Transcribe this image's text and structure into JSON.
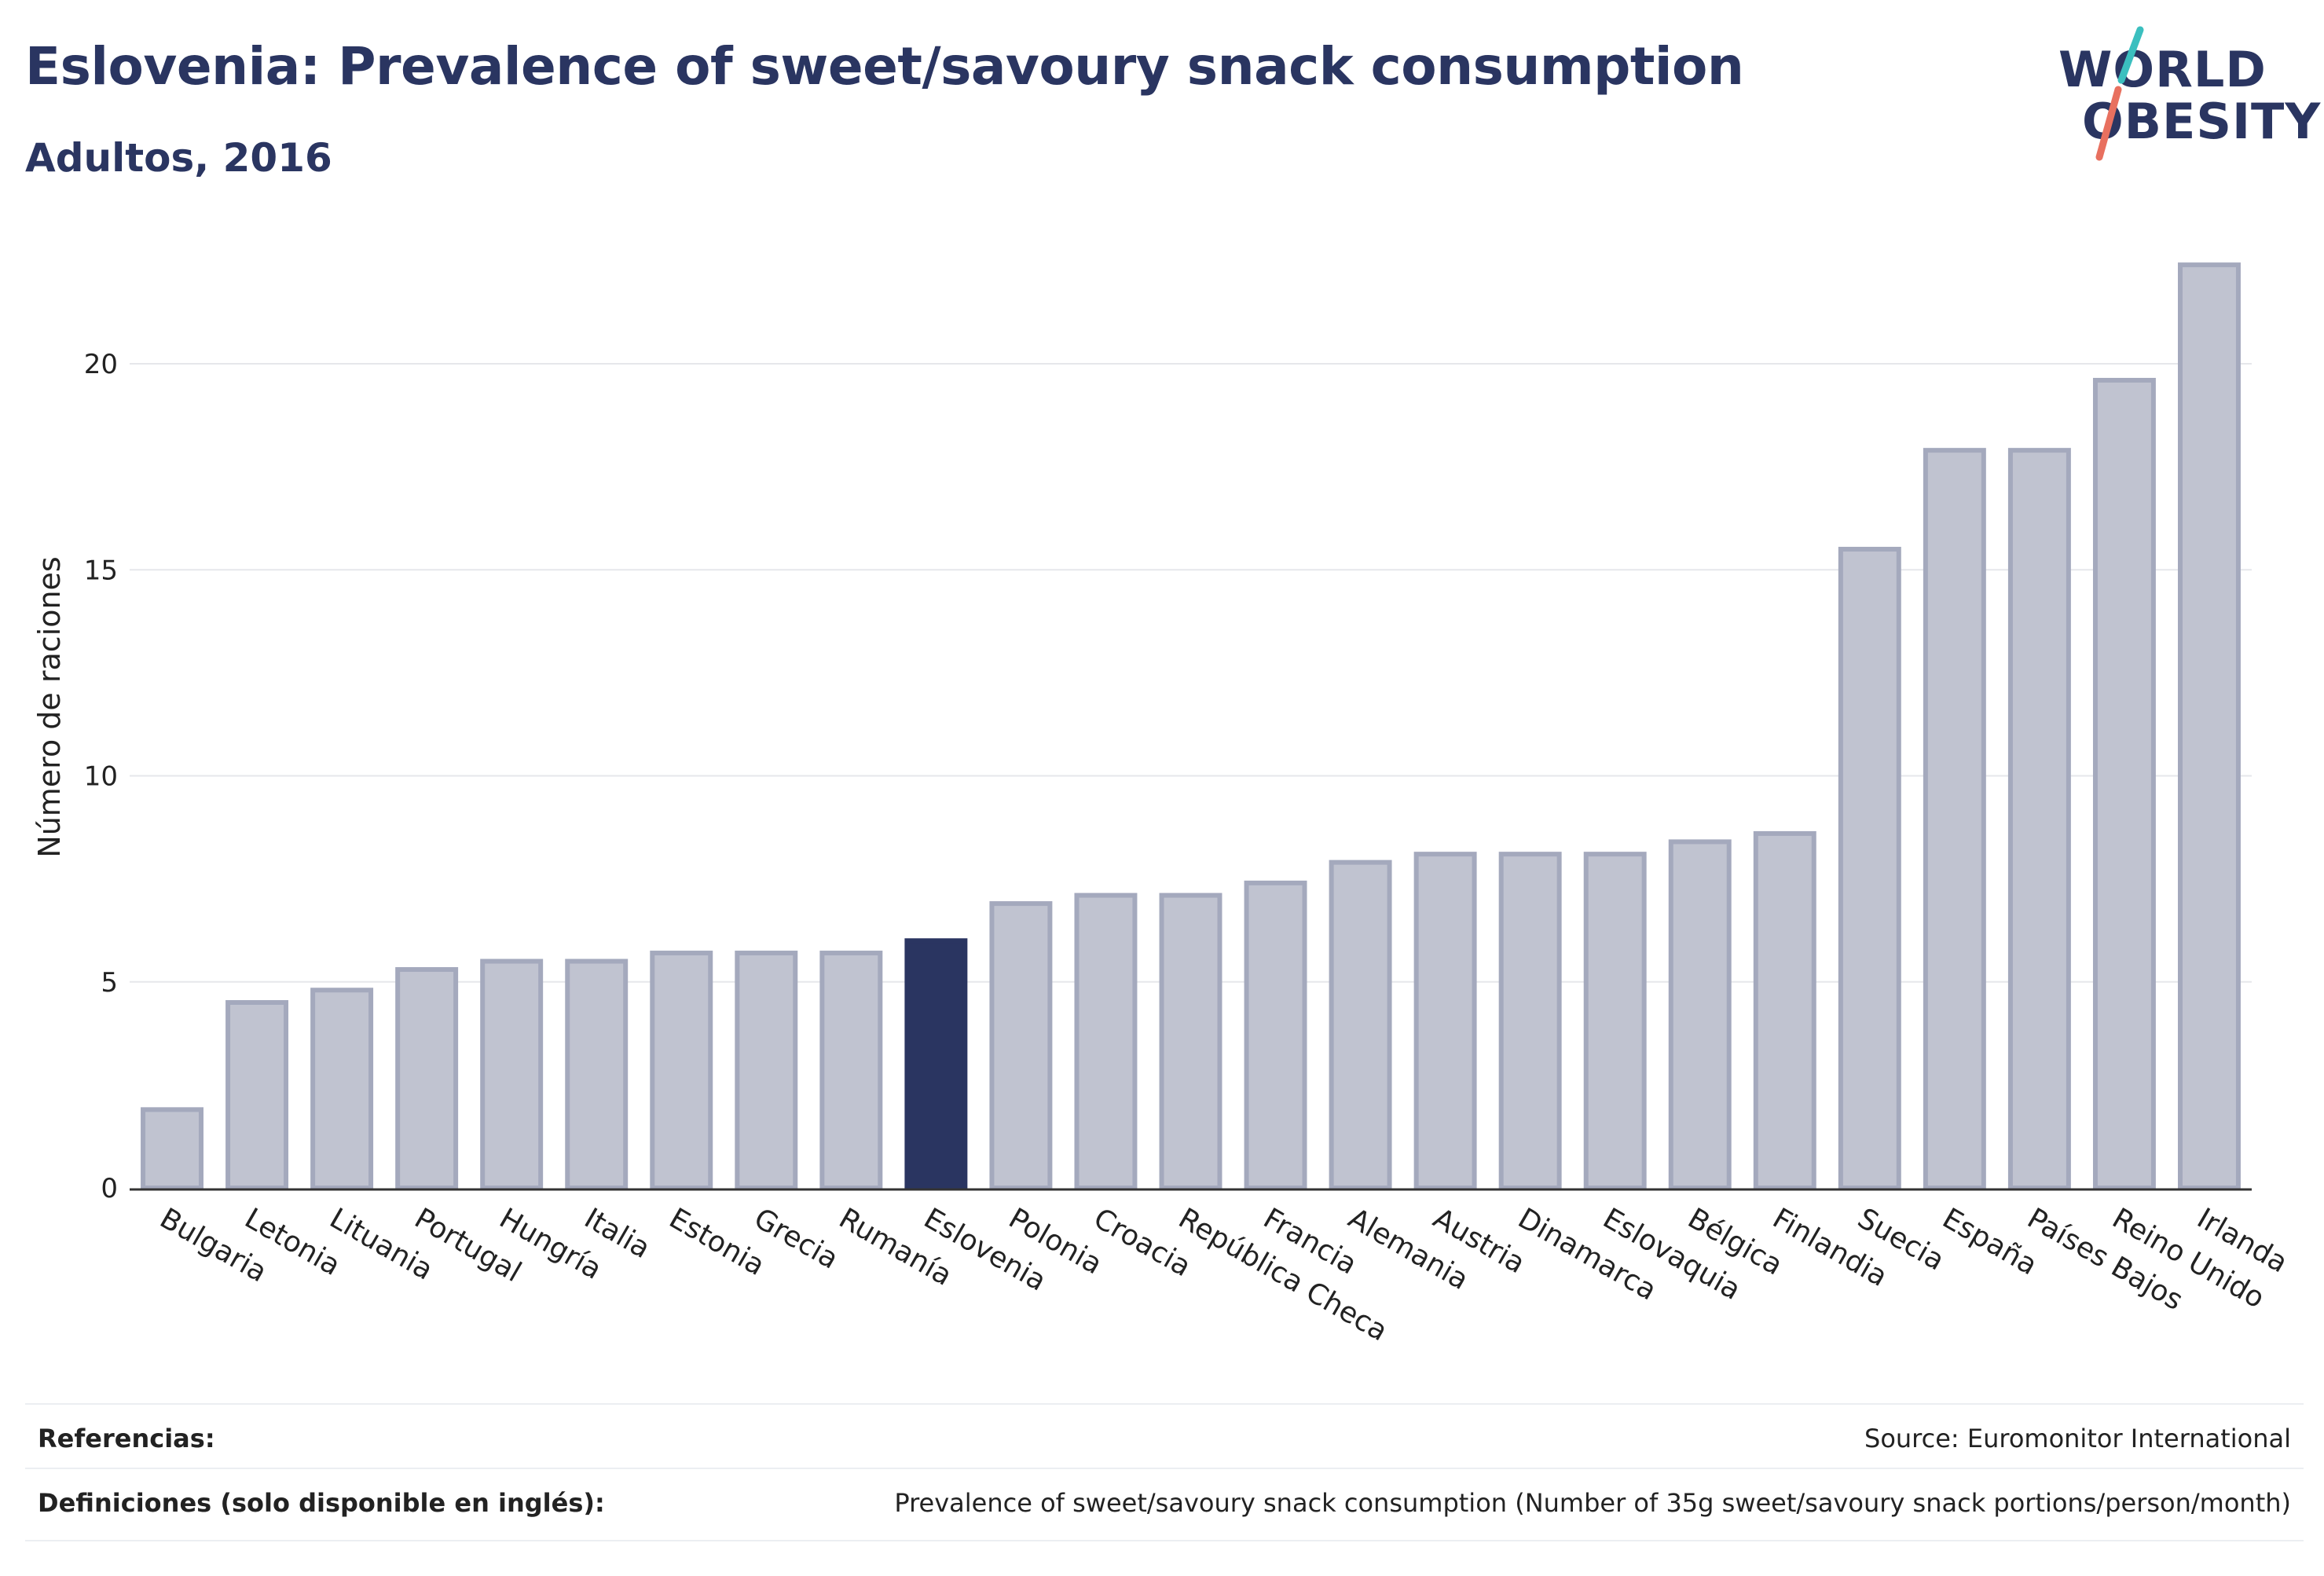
{
  "header": {
    "title": "Eslovenia: Prevalence of sweet/savoury snack consumption",
    "subtitle": "Adultos, 2016"
  },
  "logo": {
    "line1": "WORLD",
    "line2": "OBESITY",
    "accent_colors": [
      "#3bbfbf",
      "#e8705f"
    ]
  },
  "chart_data": {
    "type": "bar",
    "title": "Eslovenia: Prevalence of sweet/savoury snack consumption",
    "subtitle": "Adultos, 2016",
    "xlabel": "",
    "ylabel": "Número de raciones",
    "ylim": [
      0,
      23
    ],
    "yticks": [
      0,
      5,
      10,
      15,
      20
    ],
    "grid": true,
    "highlight": "Eslovenia",
    "colors": {
      "bar": "#c0c3d0",
      "bar_border": "#a4a9bd",
      "highlight": "#2a3561",
      "axis": "#333333",
      "grid": "#e6e7eb"
    },
    "categories": [
      "Bulgaria",
      "Letonia",
      "Lituania",
      "Portugal",
      "Hungría",
      "Italia",
      "Estonia",
      "Grecia",
      "Rumanía",
      "Eslovenia",
      "Polonia",
      "Croacia",
      "República Checa",
      "Francia",
      "Alemania",
      "Austria",
      "Dinamarca",
      "Eslovaquia",
      "Bélgica",
      "Finlandia",
      "Suecia",
      "España",
      "Países Bajos",
      "Reino Unido",
      "Irlanda"
    ],
    "values": [
      1.9,
      4.5,
      4.8,
      5.3,
      5.5,
      5.5,
      5.7,
      5.7,
      5.7,
      6.0,
      6.9,
      7.1,
      7.1,
      7.4,
      7.9,
      8.1,
      8.1,
      8.1,
      8.4,
      8.6,
      15.5,
      17.9,
      17.9,
      19.6,
      22.4
    ]
  },
  "footer": {
    "references_label": "Referencias:",
    "references_value": "Source: Euromonitor International",
    "definitions_label": "Definiciones (solo disponible en inglés):",
    "definitions_value": "Prevalence of sweet/savoury snack consumption (Number of 35g sweet/savoury snack portions/person/month)"
  }
}
